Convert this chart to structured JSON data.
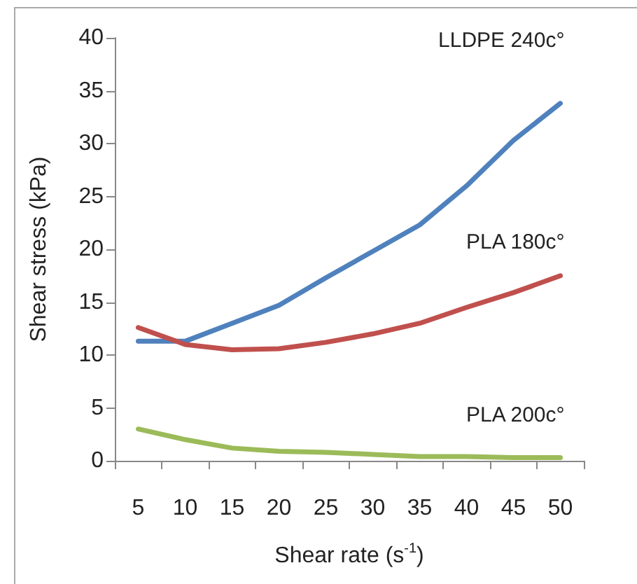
{
  "chart_data": {
    "type": "line",
    "xlabel": "Shear rate (s$^{-1}$)",
    "ylabel": "Shear stress (kPa)",
    "categories": [
      "5",
      "10",
      "15",
      "20",
      "25",
      "30",
      "35",
      "40",
      "45",
      "50"
    ],
    "series": [
      {
        "name": "LLDPE 240c°",
        "color": "#4f81bd",
        "values": [
          11.3,
          11.3,
          13,
          14.7,
          17.3,
          19.8,
          22.3,
          26,
          30.3,
          33.8
        ]
      },
      {
        "name": "PLA 180c°",
        "color": "#c0504d",
        "values": [
          12.6,
          11,
          10.5,
          10.6,
          11.2,
          12,
          13,
          14.5,
          15.9,
          17.5
        ]
      },
      {
        "name": "PLA 200c°",
        "color": "#9bbb59",
        "values": [
          3,
          2,
          1.2,
          0.9,
          0.8,
          0.6,
          0.4,
          0.4,
          0.3,
          0.3
        ]
      }
    ],
    "ylim": [
      0,
      40
    ],
    "yticks": [
      0,
      5,
      10,
      15,
      20,
      25,
      30,
      35,
      40
    ],
    "grid": false,
    "legend": false,
    "marker": "none",
    "line_style": "solid"
  }
}
